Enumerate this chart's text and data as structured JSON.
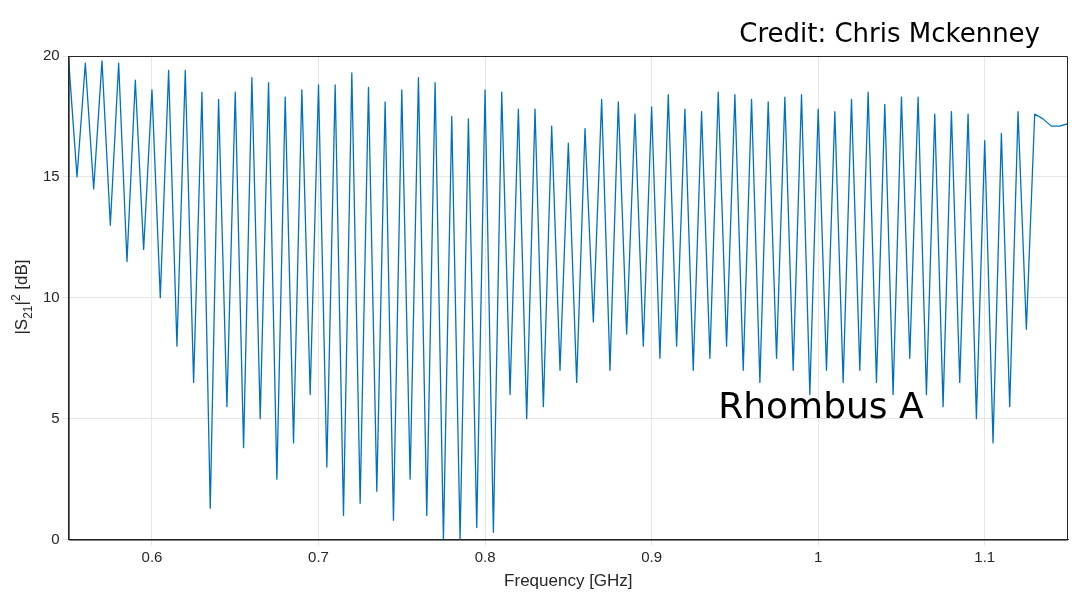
{
  "chart_data": {
    "type": "line",
    "xlabel": "Frequency [GHz]",
    "ylabel": "|S$_{21}$|$^{2}$ [dB]",
    "annotations": [
      "Credit: Chris Mckenney",
      "Rhombus A"
    ],
    "x": [
      0.55,
      0.555,
      0.56,
      0.565,
      0.57,
      0.575,
      0.58,
      0.585,
      0.59,
      0.595,
      0.6,
      0.605,
      0.61,
      0.615,
      0.62,
      0.625,
      0.63,
      0.635,
      0.64,
      0.645,
      0.65,
      0.655,
      0.66,
      0.665,
      0.67,
      0.675,
      0.68,
      0.685,
      0.69,
      0.695,
      0.7,
      0.705,
      0.71,
      0.715,
      0.72,
      0.725,
      0.73,
      0.735,
      0.74,
      0.745,
      0.75,
      0.755,
      0.76,
      0.765,
      0.77,
      0.775,
      0.78,
      0.785,
      0.79,
      0.795,
      0.8,
      0.805,
      0.81,
      0.815,
      0.82,
      0.825,
      0.83,
      0.835,
      0.84,
      0.845,
      0.85,
      0.855,
      0.86,
      0.865,
      0.87,
      0.875,
      0.88,
      0.885,
      0.89,
      0.895,
      0.9,
      0.905,
      0.91,
      0.915,
      0.92,
      0.925,
      0.93,
      0.935,
      0.94,
      0.945,
      0.95,
      0.955,
      0.96,
      0.965,
      0.97,
      0.975,
      0.98,
      0.985,
      0.99,
      0.995,
      1.0,
      1.005,
      1.01,
      1.015,
      1.02,
      1.025,
      1.03,
      1.035,
      1.04,
      1.045,
      1.05,
      1.055,
      1.06,
      1.065,
      1.07,
      1.075,
      1.08,
      1.085,
      1.09,
      1.095,
      1.1,
      1.105,
      1.11,
      1.115,
      1.12,
      1.125,
      1.13,
      1.135,
      1.14,
      1.145,
      1.15
    ],
    "series": [
      {
        "color": "#0072bd",
        "values": [
          19.8,
          15.0,
          19.7,
          14.5,
          19.8,
          13.0,
          19.7,
          11.5,
          19.0,
          12.0,
          18.6,
          10.0,
          19.4,
          8.0,
          19.4,
          6.5,
          18.5,
          1.3,
          18.2,
          5.5,
          18.5,
          3.8,
          19.1,
          5.0,
          18.9,
          2.5,
          18.3,
          4.0,
          18.6,
          6.0,
          18.8,
          3.0,
          18.8,
          1.0,
          19.3,
          1.5,
          18.7,
          2.0,
          18.1,
          0.8,
          18.6,
          2.5,
          19.1,
          1.0,
          18.9,
          0.0,
          17.5,
          0.0,
          17.4,
          0.5,
          18.6,
          0.3,
          18.5,
          6.0,
          17.8,
          5.0,
          17.8,
          5.5,
          17.1,
          7.0,
          16.4,
          6.5,
          17.0,
          9.0,
          18.2,
          7.0,
          18.1,
          8.5,
          17.6,
          8.0,
          17.9,
          7.5,
          18.4,
          8.0,
          17.8,
          7.0,
          17.7,
          7.5,
          18.5,
          8.0,
          18.4,
          7.0,
          18.2,
          6.5,
          18.1,
          7.5,
          18.3,
          7.0,
          18.4,
          6.0,
          17.8,
          7.0,
          17.7,
          6.5,
          18.2,
          7.0,
          18.5,
          6.5,
          18.0,
          6.0,
          18.3,
          7.5,
          18.3,
          6.0,
          17.6,
          5.5,
          17.7,
          6.5,
          17.6,
          5.0,
          16.5,
          4.0,
          16.8,
          5.5,
          17.7,
          8.7,
          17.6,
          17.4,
          17.1,
          17.1,
          17.2
        ]
      }
    ],
    "xlim": [
      0.55,
      1.15
    ],
    "xticks": [
      0.6,
      0.7,
      0.8,
      0.9,
      1,
      1.1
    ],
    "ylim": [
      0,
      20
    ],
    "yticks": [
      0,
      5,
      10,
      15,
      20
    ],
    "grid": true,
    "marker": "none",
    "line_style": "solid"
  }
}
